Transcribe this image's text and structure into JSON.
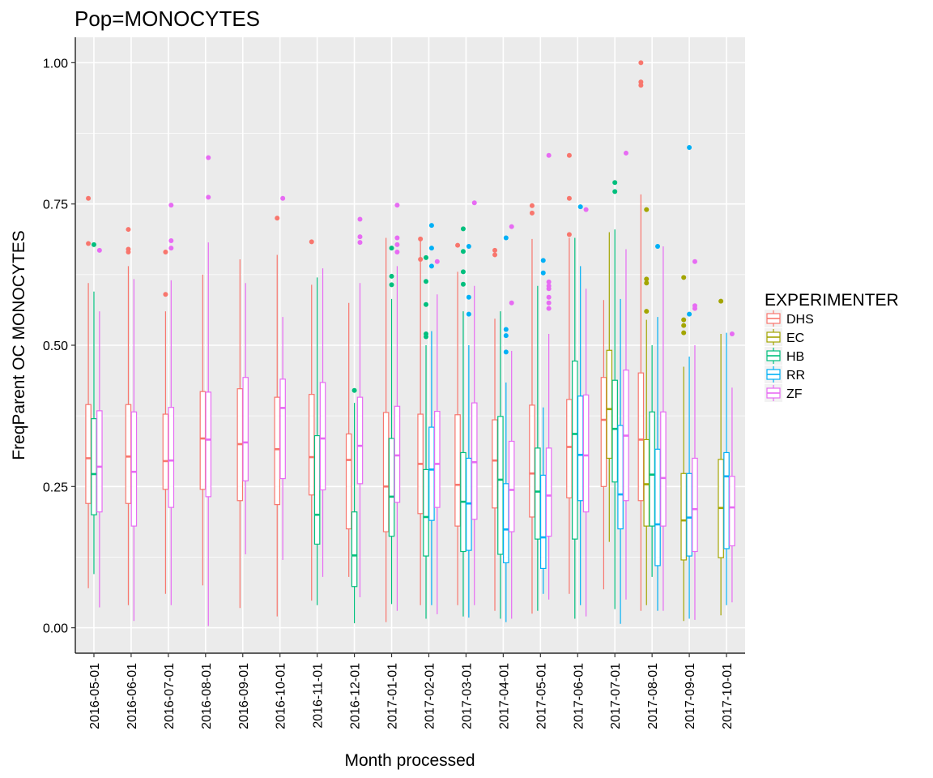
{
  "chart_data": {
    "type": "box",
    "title": "Pop=MONOCYTES",
    "xlabel": "Month processed",
    "ylabel": "FreqParent OC MONOCYTES",
    "ylim": [
      -0.045,
      1.045
    ],
    "yticks": [
      0.0,
      0.25,
      0.5,
      0.75,
      1.0
    ],
    "ytick_labels": [
      "0.00",
      "0.25",
      "0.50",
      "0.75",
      "1.00"
    ],
    "grid": true,
    "legend": {
      "title": "EXPERIMENTER",
      "position": "right"
    },
    "categories": [
      "2016-05-01",
      "2016-06-01",
      "2016-07-01",
      "2016-08-01",
      "2016-09-01",
      "2016-10-01",
      "2016-11-01",
      "2016-12-01",
      "2017-01-01",
      "2017-02-01",
      "2017-03-01",
      "2017-04-01",
      "2017-05-01",
      "2017-06-01",
      "2017-07-01",
      "2017-08-01",
      "2017-09-01",
      "2017-10-01"
    ],
    "colors": {
      "DHS": "#F8766D",
      "EC": "#A3A500",
      "HB": "#00BF7D",
      "RR": "#00B0F6",
      "ZF": "#E76BF3"
    },
    "series": [
      {
        "name": "DHS",
        "boxes": [
          {
            "cat": "2016-05-01",
            "min": 0.07,
            "q1": 0.22,
            "median": 0.3,
            "q3": 0.395,
            "max": 0.61,
            "outliers": [
              0.76,
              0.68
            ]
          },
          {
            "cat": "2016-06-01",
            "min": 0.04,
            "q1": 0.22,
            "median": 0.303,
            "q3": 0.395,
            "max": 0.64,
            "outliers": [
              0.705,
              0.67,
              0.665
            ]
          },
          {
            "cat": "2016-07-01",
            "min": 0.06,
            "q1": 0.245,
            "median": 0.295,
            "q3": 0.378,
            "max": 0.56,
            "outliers": [
              0.665,
              0.59
            ]
          },
          {
            "cat": "2016-08-01",
            "min": 0.075,
            "q1": 0.245,
            "median": 0.335,
            "q3": 0.418,
            "max": 0.625,
            "outliers": []
          },
          {
            "cat": "2016-09-01",
            "min": 0.035,
            "q1": 0.225,
            "median": 0.325,
            "q3": 0.423,
            "max": 0.652,
            "outliers": []
          },
          {
            "cat": "2016-10-01",
            "min": 0.02,
            "q1": 0.218,
            "median": 0.316,
            "q3": 0.408,
            "max": 0.66,
            "outliers": [
              0.725
            ]
          },
          {
            "cat": "2016-11-01",
            "min": 0.048,
            "q1": 0.235,
            "median": 0.302,
            "q3": 0.413,
            "max": 0.607,
            "outliers": [
              0.683
            ]
          },
          {
            "cat": "2016-12-01",
            "min": 0.09,
            "q1": 0.175,
            "median": 0.297,
            "q3": 0.343,
            "max": 0.575,
            "outliers": []
          },
          {
            "cat": "2017-01-01",
            "min": 0.01,
            "q1": 0.17,
            "median": 0.25,
            "q3": 0.381,
            "max": 0.69,
            "outliers": []
          },
          {
            "cat": "2017-02-01",
            "min": 0.04,
            "q1": 0.202,
            "median": 0.29,
            "q3": 0.378,
            "max": 0.685,
            "outliers": [
              0.688,
              0.652
            ]
          },
          {
            "cat": "2017-03-01",
            "min": 0.04,
            "q1": 0.18,
            "median": 0.253,
            "q3": 0.377,
            "max": 0.63,
            "outliers": [
              0.677
            ]
          },
          {
            "cat": "2017-04-01",
            "min": 0.03,
            "q1": 0.212,
            "median": 0.296,
            "q3": 0.368,
            "max": 0.547,
            "outliers": [
              0.668,
              0.66
            ]
          },
          {
            "cat": "2017-05-01",
            "min": 0.025,
            "q1": 0.196,
            "median": 0.273,
            "q3": 0.394,
            "max": 0.688,
            "outliers": [
              0.747,
              0.734
            ]
          },
          {
            "cat": "2017-06-01",
            "min": 0.06,
            "q1": 0.23,
            "median": 0.32,
            "q3": 0.404,
            "max": 0.69,
            "outliers": [
              0.836,
              0.76,
              0.696
            ]
          },
          {
            "cat": "2017-07-01",
            "min": 0.068,
            "q1": 0.25,
            "median": 0.368,
            "q3": 0.443,
            "max": 0.58,
            "outliers": []
          },
          {
            "cat": "2017-08-01",
            "min": 0.03,
            "q1": 0.225,
            "median": 0.333,
            "q3": 0.451,
            "max": 0.767,
            "outliers": [
              1.0,
              0.966,
              0.96
            ]
          }
        ]
      },
      {
        "name": "EC",
        "boxes": [
          {
            "cat": "2017-07-01",
            "min": 0.152,
            "q1": 0.3,
            "median": 0.387,
            "q3": 0.491,
            "max": 0.7,
            "outliers": []
          },
          {
            "cat": "2017-08-01",
            "min": 0.04,
            "q1": 0.18,
            "median": 0.254,
            "q3": 0.333,
            "max": 0.545,
            "outliers": [
              0.74,
              0.617,
              0.61,
              0.56
            ]
          },
          {
            "cat": "2017-09-01",
            "min": 0.012,
            "q1": 0.12,
            "median": 0.19,
            "q3": 0.273,
            "max": 0.462,
            "outliers": [
              0.62,
              0.545,
              0.535,
              0.522
            ]
          },
          {
            "cat": "2017-10-01",
            "min": 0.022,
            "q1": 0.124,
            "median": 0.212,
            "q3": 0.298,
            "max": 0.52,
            "outliers": [
              0.578
            ]
          }
        ]
      },
      {
        "name": "HB",
        "boxes": [
          {
            "cat": "2016-05-01",
            "min": 0.095,
            "q1": 0.2,
            "median": 0.272,
            "q3": 0.37,
            "max": 0.595,
            "outliers": [
              0.678
            ]
          },
          {
            "cat": "2016-11-01",
            "min": 0.04,
            "q1": 0.148,
            "median": 0.2,
            "q3": 0.34,
            "max": 0.62,
            "outliers": []
          },
          {
            "cat": "2016-12-01",
            "min": 0.008,
            "q1": 0.073,
            "median": 0.128,
            "q3": 0.205,
            "max": 0.398,
            "outliers": [
              0.42
            ]
          },
          {
            "cat": "2017-01-01",
            "min": 0.042,
            "q1": 0.162,
            "median": 0.232,
            "q3": 0.335,
            "max": 0.582,
            "outliers": [
              0.672,
              0.622,
              0.607
            ]
          },
          {
            "cat": "2017-02-01",
            "min": 0.016,
            "q1": 0.127,
            "median": 0.196,
            "q3": 0.28,
            "max": 0.5,
            "outliers": [
              0.655,
              0.613,
              0.572,
              0.52,
              0.515
            ]
          },
          {
            "cat": "2017-03-01",
            "min": 0.02,
            "q1": 0.135,
            "median": 0.223,
            "q3": 0.31,
            "max": 0.56,
            "outliers": [
              0.706,
              0.666,
              0.63,
              0.608
            ]
          },
          {
            "cat": "2017-04-01",
            "min": 0.016,
            "q1": 0.13,
            "median": 0.262,
            "q3": 0.374,
            "max": 0.56,
            "outliers": []
          },
          {
            "cat": "2017-05-01",
            "min": 0.03,
            "q1": 0.157,
            "median": 0.241,
            "q3": 0.318,
            "max": 0.605,
            "outliers": []
          },
          {
            "cat": "2017-06-01",
            "min": 0.016,
            "q1": 0.157,
            "median": 0.343,
            "q3": 0.472,
            "max": 0.69,
            "outliers": []
          },
          {
            "cat": "2017-07-01",
            "min": 0.033,
            "q1": 0.258,
            "median": 0.352,
            "q3": 0.438,
            "max": 0.705,
            "outliers": [
              0.788,
              0.772
            ]
          },
          {
            "cat": "2017-08-01",
            "min": 0.09,
            "q1": 0.18,
            "median": 0.271,
            "q3": 0.382,
            "max": 0.5,
            "outliers": []
          }
        ]
      },
      {
        "name": "RR",
        "boxes": [
          {
            "cat": "2017-02-01",
            "min": 0.04,
            "q1": 0.19,
            "median": 0.28,
            "q3": 0.355,
            "max": 0.525,
            "outliers": [
              0.712,
              0.672,
              0.64
            ]
          },
          {
            "cat": "2017-03-01",
            "min": 0.018,
            "q1": 0.137,
            "median": 0.22,
            "q3": 0.3,
            "max": 0.5,
            "outliers": [
              0.675,
              0.585,
              0.555
            ]
          },
          {
            "cat": "2017-04-01",
            "min": 0.01,
            "q1": 0.115,
            "median": 0.174,
            "q3": 0.255,
            "max": 0.434,
            "outliers": [
              0.69,
              0.528,
              0.517,
              0.488
            ]
          },
          {
            "cat": "2017-05-01",
            "min": 0.06,
            "q1": 0.105,
            "median": 0.16,
            "q3": 0.27,
            "max": 0.39,
            "outliers": [
              0.65,
              0.628
            ]
          },
          {
            "cat": "2017-06-01",
            "min": 0.04,
            "q1": 0.225,
            "median": 0.306,
            "q3": 0.41,
            "max": 0.64,
            "outliers": [
              0.745
            ]
          },
          {
            "cat": "2017-07-01",
            "min": 0.007,
            "q1": 0.175,
            "median": 0.236,
            "q3": 0.358,
            "max": 0.582,
            "outliers": []
          },
          {
            "cat": "2017-08-01",
            "min": 0.03,
            "q1": 0.11,
            "median": 0.183,
            "q3": 0.316,
            "max": 0.55,
            "outliers": [
              0.675
            ]
          },
          {
            "cat": "2017-09-01",
            "min": 0.016,
            "q1": 0.127,
            "median": 0.195,
            "q3": 0.273,
            "max": 0.48,
            "outliers": [
              0.85,
              0.555
            ]
          },
          {
            "cat": "2017-10-01",
            "min": 0.04,
            "q1": 0.14,
            "median": 0.268,
            "q3": 0.31,
            "max": 0.522,
            "outliers": []
          }
        ]
      },
      {
        "name": "ZF",
        "boxes": [
          {
            "cat": "2016-05-01",
            "min": 0.036,
            "q1": 0.205,
            "median": 0.285,
            "q3": 0.384,
            "max": 0.56,
            "outliers": [
              0.668
            ]
          },
          {
            "cat": "2016-06-01",
            "min": 0.012,
            "q1": 0.18,
            "median": 0.276,
            "q3": 0.382,
            "max": 0.617,
            "outliers": []
          },
          {
            "cat": "2016-07-01",
            "min": 0.04,
            "q1": 0.213,
            "median": 0.296,
            "q3": 0.39,
            "max": 0.615,
            "outliers": [
              0.748,
              0.685,
              0.672
            ]
          },
          {
            "cat": "2016-08-01",
            "min": 0.003,
            "q1": 0.232,
            "median": 0.333,
            "q3": 0.417,
            "max": 0.682,
            "outliers": [
              0.832,
              0.762
            ]
          },
          {
            "cat": "2016-09-01",
            "min": 0.13,
            "q1": 0.26,
            "median": 0.328,
            "q3": 0.443,
            "max": 0.61,
            "outliers": []
          },
          {
            "cat": "2016-10-01",
            "min": 0.12,
            "q1": 0.264,
            "median": 0.389,
            "q3": 0.44,
            "max": 0.55,
            "outliers": [
              0.76
            ]
          },
          {
            "cat": "2016-11-01",
            "min": 0.09,
            "q1": 0.244,
            "median": 0.335,
            "q3": 0.434,
            "max": 0.636,
            "outliers": []
          },
          {
            "cat": "2016-12-01",
            "min": 0.054,
            "q1": 0.255,
            "median": 0.322,
            "q3": 0.408,
            "max": 0.61,
            "outliers": [
              0.723,
              0.692,
              0.682
            ]
          },
          {
            "cat": "2017-01-01",
            "min": 0.03,
            "q1": 0.222,
            "median": 0.305,
            "q3": 0.392,
            "max": 0.64,
            "outliers": [
              0.748,
              0.69,
              0.678,
              0.665
            ]
          },
          {
            "cat": "2017-02-01",
            "min": 0.024,
            "q1": 0.213,
            "median": 0.29,
            "q3": 0.383,
            "max": 0.59,
            "outliers": [
              0.648
            ]
          },
          {
            "cat": "2017-03-01",
            "min": 0.04,
            "q1": 0.192,
            "median": 0.293,
            "q3": 0.398,
            "max": 0.605,
            "outliers": [
              0.752
            ]
          },
          {
            "cat": "2017-04-01",
            "min": 0.016,
            "q1": 0.17,
            "median": 0.244,
            "q3": 0.33,
            "max": 0.49,
            "outliers": [
              0.71,
              0.575
            ]
          },
          {
            "cat": "2017-05-01",
            "min": 0.05,
            "q1": 0.162,
            "median": 0.234,
            "q3": 0.318,
            "max": 0.52,
            "outliers": [
              0.836,
              0.612,
              0.605,
              0.6,
              0.585,
              0.575,
              0.565
            ]
          },
          {
            "cat": "2017-06-01",
            "min": 0.02,
            "q1": 0.205,
            "median": 0.305,
            "q3": 0.412,
            "max": 0.6,
            "outliers": [
              0.74
            ]
          },
          {
            "cat": "2017-07-01",
            "min": 0.05,
            "q1": 0.225,
            "median": 0.34,
            "q3": 0.456,
            "max": 0.67,
            "outliers": [
              0.84
            ]
          },
          {
            "cat": "2017-08-01",
            "min": 0.03,
            "q1": 0.18,
            "median": 0.265,
            "q3": 0.382,
            "max": 0.675,
            "outliers": []
          },
          {
            "cat": "2017-09-01",
            "min": 0.014,
            "q1": 0.135,
            "median": 0.21,
            "q3": 0.3,
            "max": 0.5,
            "outliers": [
              0.648,
              0.57,
              0.565
            ]
          },
          {
            "cat": "2017-10-01",
            "min": 0.045,
            "q1": 0.145,
            "median": 0.213,
            "q3": 0.268,
            "max": 0.425,
            "outliers": [
              0.52
            ]
          }
        ]
      }
    ]
  }
}
